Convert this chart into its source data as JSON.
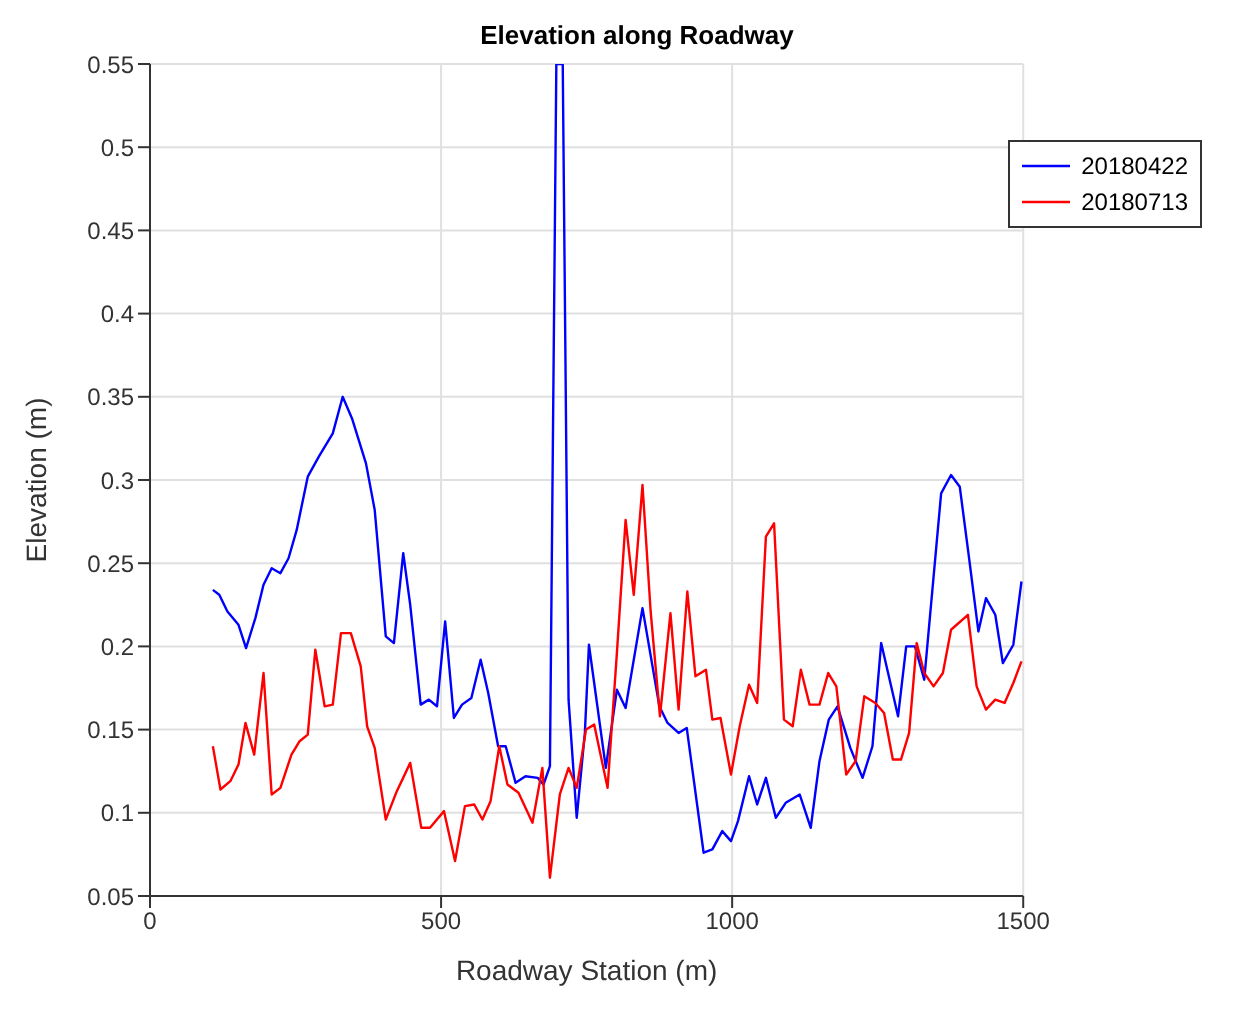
{
  "chart_data": {
    "type": "line",
    "title": "Elevation along Roadway",
    "xlabel": "Roadway Station (m)",
    "ylabel": "Elevation (m)",
    "xlim": [
      0,
      1500
    ],
    "xticks": [
      0,
      500,
      1000,
      1500
    ],
    "ylim": [
      0.05,
      0.55
    ],
    "yticks": [
      0.05,
      0.1,
      0.15,
      0.2,
      0.25,
      0.3,
      0.35,
      0.4,
      0.45,
      0.5,
      0.55
    ],
    "grid": true,
    "legend": "top right",
    "series": [
      {
        "name": "20180422",
        "color": "#0000ff",
        "x": [
          108,
          119,
          133,
          152,
          165,
          181,
          195,
          209,
          224,
          238,
          252,
          271,
          290,
          314,
          331,
          347,
          371,
          386,
          405,
          419,
          435,
          447,
          465,
          479,
          493,
          507,
          522,
          536,
          552,
          568,
          581,
          598,
          611,
          628,
          645,
          666,
          676,
          687,
          698,
          709,
          719,
          733,
          747,
          754,
          783,
          802,
          817,
          846,
          875,
          889,
          908,
          922,
          951,
          966,
          983,
          998,
          1010,
          1029,
          1043,
          1058,
          1075,
          1092,
          1116,
          1135,
          1150,
          1166,
          1181,
          1203,
          1224,
          1241,
          1256,
          1285,
          1299,
          1314,
          1330,
          1359,
          1376,
          1391,
          1407,
          1423,
          1436,
          1452,
          1465,
          1483,
          1497
        ],
        "values": [
          0.234,
          0.231,
          0.221,
          0.213,
          0.199,
          0.217,
          0.237,
          0.247,
          0.244,
          0.253,
          0.27,
          0.302,
          0.314,
          0.328,
          0.35,
          0.337,
          0.31,
          0.282,
          0.206,
          0.202,
          0.256,
          0.225,
          0.165,
          0.168,
          0.164,
          0.215,
          0.157,
          0.165,
          0.169,
          0.192,
          0.172,
          0.14,
          0.14,
          0.118,
          0.122,
          0.121,
          0.117,
          0.128,
          0.55,
          0.55,
          0.168,
          0.097,
          0.148,
          0.201,
          0.127,
          0.174,
          0.163,
          0.223,
          0.164,
          0.154,
          0.148,
          0.151,
          0.076,
          0.078,
          0.089,
          0.083,
          0.095,
          0.122,
          0.105,
          0.121,
          0.097,
          0.106,
          0.111,
          0.091,
          0.131,
          0.156,
          0.164,
          0.139,
          0.121,
          0.14,
          0.202,
          0.158,
          0.2,
          0.2,
          0.18,
          0.292,
          0.303,
          0.296,
          0.253,
          0.209,
          0.229,
          0.219,
          0.19,
          0.201,
          0.239
        ]
      },
      {
        "name": "20180713",
        "color": "#ff0000",
        "x": [
          108,
          121,
          138,
          152,
          164,
          179,
          195,
          209,
          224,
          243,
          257,
          271,
          284,
          300,
          314,
          328,
          345,
          362,
          373,
          386,
          405,
          424,
          447,
          466,
          481,
          505,
          524,
          541,
          557,
          571,
          585,
          600,
          614,
          633,
          657,
          674,
          687,
          704,
          719,
          733,
          749,
          763,
          786,
          802,
          817,
          831,
          846,
          860,
          876,
          894,
          908,
          923,
          937,
          955,
          966,
          980,
          998,
          1013,
          1029,
          1043,
          1058,
          1072,
          1089,
          1104,
          1118,
          1133,
          1150,
          1165,
          1179,
          1196,
          1212,
          1227,
          1246,
          1261,
          1276,
          1290,
          1304,
          1317,
          1330,
          1346,
          1362,
          1376,
          1405,
          1420,
          1436,
          1452,
          1468,
          1483,
          1497
        ],
        "values": [
          0.14,
          0.114,
          0.119,
          0.129,
          0.154,
          0.135,
          0.184,
          0.111,
          0.115,
          0.135,
          0.143,
          0.147,
          0.198,
          0.164,
          0.165,
          0.208,
          0.208,
          0.188,
          0.152,
          0.139,
          0.096,
          0.113,
          0.13,
          0.091,
          0.091,
          0.101,
          0.071,
          0.104,
          0.105,
          0.096,
          0.107,
          0.14,
          0.117,
          0.112,
          0.094,
          0.127,
          0.061,
          0.111,
          0.127,
          0.115,
          0.15,
          0.153,
          0.115,
          0.196,
          0.276,
          0.231,
          0.297,
          0.221,
          0.158,
          0.22,
          0.162,
          0.233,
          0.182,
          0.186,
          0.156,
          0.157,
          0.123,
          0.152,
          0.177,
          0.166,
          0.266,
          0.274,
          0.156,
          0.152,
          0.186,
          0.165,
          0.165,
          0.184,
          0.176,
          0.123,
          0.131,
          0.17,
          0.166,
          0.16,
          0.132,
          0.132,
          0.148,
          0.202,
          0.184,
          0.176,
          0.184,
          0.21,
          0.219,
          0.176,
          0.162,
          0.168,
          0.166,
          0.178,
          0.191
        ]
      }
    ]
  }
}
